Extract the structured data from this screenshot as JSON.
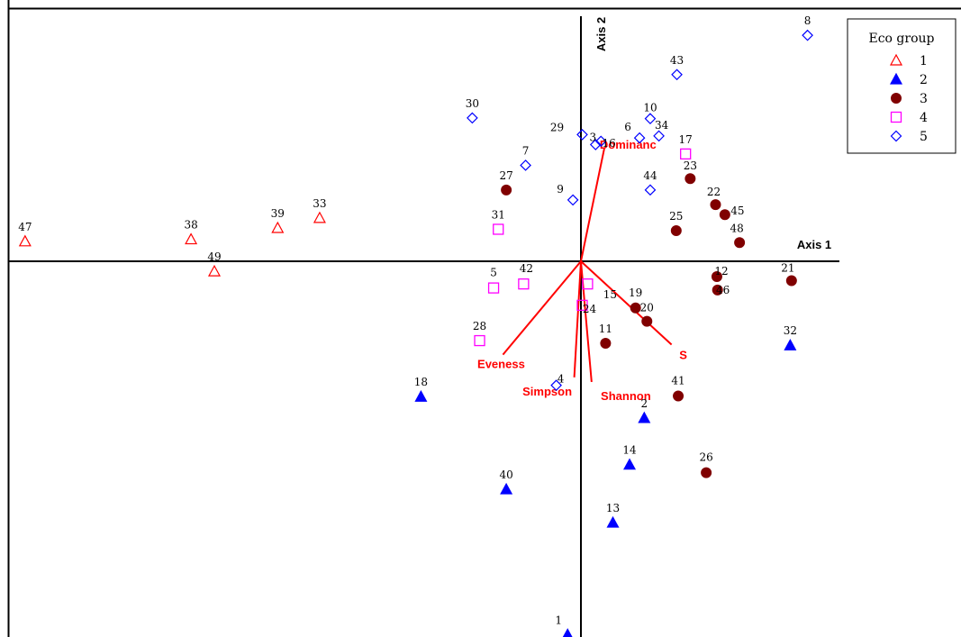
{
  "chart_data": {
    "type": "scatter",
    "xlabel": "Axis 1",
    "ylabel": "Axis 2",
    "xlim": [
      -8.6,
      3.9
    ],
    "ylim": [
      -5.65,
      3.7
    ],
    "grid": false,
    "legend_position": "top-right",
    "legend": {
      "title": "Eco group",
      "entries": [
        {
          "group": "1",
          "label": "1"
        },
        {
          "group": "2",
          "label": "2"
        },
        {
          "group": "3",
          "label": "3"
        },
        {
          "group": "4",
          "label": "4"
        },
        {
          "group": "5",
          "label": "5"
        }
      ]
    },
    "groups": {
      "1": {
        "marker": "open-triangle",
        "color": "#ff0000"
      },
      "2": {
        "marker": "filled-triangle",
        "color": "#0000ff"
      },
      "3": {
        "marker": "filled-circle",
        "color": "#800000"
      },
      "4": {
        "marker": "open-square",
        "color": "#ff00ff"
      },
      "5": {
        "marker": "open-diamond",
        "color": "#0000ff"
      }
    },
    "points": [
      {
        "label": "47",
        "group": "1",
        "x": -8.34,
        "y": 0.3
      },
      {
        "label": "38",
        "group": "1",
        "x": -5.85,
        "y": 0.33
      },
      {
        "label": "39",
        "group": "1",
        "x": -4.55,
        "y": 0.5
      },
      {
        "label": "33",
        "group": "1",
        "x": -3.92,
        "y": 0.65
      },
      {
        "label": "49",
        "group": "1",
        "x": -5.5,
        "y": -0.15
      },
      {
        "label": "18",
        "group": "2",
        "x": -2.4,
        "y": -2.03
      },
      {
        "label": "40",
        "group": "2",
        "x": -1.12,
        "y": -3.42
      },
      {
        "label": "4",
        "group": "5",
        "x": -0.37,
        "y": -1.86
      },
      {
        "label": "2",
        "group": "2",
        "x": 0.95,
        "y": -2.35
      },
      {
        "label": "14",
        "group": "2",
        "x": 0.73,
        "y": -3.05
      },
      {
        "label": "13",
        "group": "2",
        "x": 0.48,
        "y": -3.92
      },
      {
        "label": "1",
        "group": "2",
        "x": -0.2,
        "y": -5.6
      },
      {
        "label": "32",
        "group": "2",
        "x": 3.14,
        "y": -1.26
      },
      {
        "label": "11",
        "group": "3",
        "x": 0.37,
        "y": -1.23
      },
      {
        "label": "19",
        "group": "3",
        "x": 0.82,
        "y": -0.7
      },
      {
        "label": "20",
        "group": "3",
        "x": 0.99,
        "y": -0.9
      },
      {
        "label": "41",
        "group": "3",
        "x": 1.46,
        "y": -2.02
      },
      {
        "label": "26",
        "group": "3",
        "x": 1.88,
        "y": -3.17
      },
      {
        "label": "12",
        "group": "3",
        "x": 2.04,
        "y": -0.23
      },
      {
        "label": "46",
        "group": "3",
        "x": 2.05,
        "y": -0.43
      },
      {
        "label": "21",
        "group": "3",
        "x": 3.16,
        "y": -0.29
      },
      {
        "label": "48",
        "group": "3",
        "x": 2.38,
        "y": 0.28
      },
      {
        "label": "45",
        "group": "3",
        "x": 2.16,
        "y": 0.7
      },
      {
        "label": "22",
        "group": "3",
        "x": 2.02,
        "y": 0.85
      },
      {
        "label": "23",
        "group": "3",
        "x": 1.64,
        "y": 1.24
      },
      {
        "label": "25",
        "group": "3",
        "x": 1.43,
        "y": 0.46
      },
      {
        "label": "27",
        "group": "3",
        "x": -1.12,
        "y": 1.07
      },
      {
        "label": "17",
        "group": "4",
        "x": 1.57,
        "y": 1.61
      },
      {
        "label": "31",
        "group": "4",
        "x": -1.24,
        "y": 0.48
      },
      {
        "label": "5",
        "group": "4",
        "x": -1.31,
        "y": -0.4
      },
      {
        "label": "42",
        "group": "4",
        "x": -0.86,
        "y": -0.34
      },
      {
        "label": "15",
        "group": "4",
        "x": 0.1,
        "y": -0.34
      },
      {
        "label": "24",
        "group": "4",
        "x": 0.02,
        "y": -0.66
      },
      {
        "label": "28",
        "group": "4",
        "x": -1.52,
        "y": -1.19
      },
      {
        "label": "8",
        "group": "5",
        "x": 3.4,
        "y": 3.39
      },
      {
        "label": "43",
        "group": "5",
        "x": 1.44,
        "y": 2.8
      },
      {
        "label": "30",
        "group": "5",
        "x": -1.63,
        "y": 2.15
      },
      {
        "label": "29",
        "group": "5",
        "x": 0.02,
        "y": 1.9
      },
      {
        "label": "10",
        "group": "5",
        "x": 1.04,
        "y": 2.14
      },
      {
        "label": "6",
        "group": "5",
        "x": 0.88,
        "y": 1.85
      },
      {
        "label": "34",
        "group": "5",
        "x": 1.17,
        "y": 1.88
      },
      {
        "label": "3",
        "group": "5",
        "x": 0.22,
        "y": 1.75
      },
      {
        "label": "16",
        "group": "5",
        "x": 0.3,
        "y": 1.8
      },
      {
        "label": "7",
        "group": "5",
        "x": -0.83,
        "y": 1.44
      },
      {
        "label": "9",
        "group": "5",
        "x": -0.12,
        "y": 0.92
      },
      {
        "label": "44",
        "group": "5",
        "x": 1.04,
        "y": 1.07
      }
    ],
    "vectors": [
      {
        "label": "Dominanc",
        "x": 0.35,
        "y": 1.69
      },
      {
        "label": "Eveness",
        "x": -1.17,
        "y": -1.4
      },
      {
        "label": "Simpson",
        "x": -0.1,
        "y": -1.74
      },
      {
        "label": "Shannon",
        "x": 0.16,
        "y": -1.81
      },
      {
        "label": "S",
        "x": 1.36,
        "y": -1.25
      }
    ],
    "vector_color": "#ff0000"
  }
}
